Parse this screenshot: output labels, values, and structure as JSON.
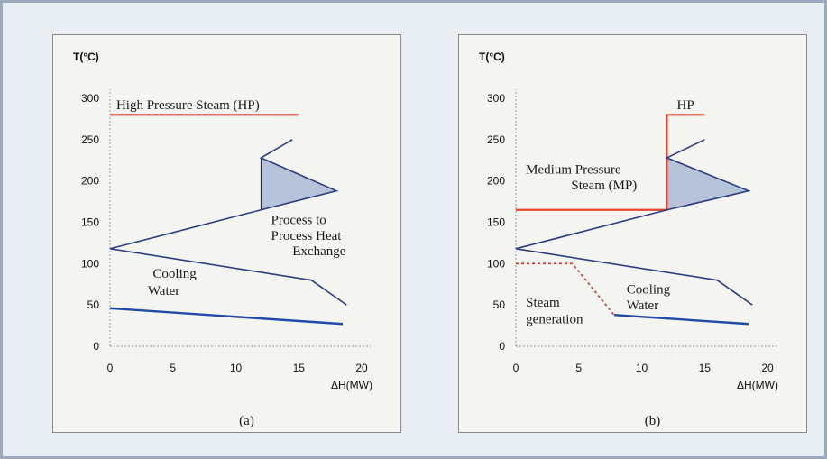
{
  "chart_data": [
    {
      "id": "a",
      "type": "line",
      "caption": "(a)",
      "ylabel": "T(°C)",
      "xlabel": "ΔH(MW)",
      "xlim": [
        0,
        20
      ],
      "ylim": [
        0,
        300
      ],
      "xticks": [
        "0",
        "5",
        "10",
        "15",
        "20"
      ],
      "yticks": [
        "0",
        "50",
        "100",
        "150",
        "200",
        "250",
        "300"
      ],
      "series": [
        {
          "kind": "hp",
          "color": "#e8452b",
          "width": 2.2,
          "points": [
            [
              0,
              280
            ],
            [
              15,
              280
            ]
          ]
        },
        {
          "kind": "gcc",
          "color": "#2c3f86",
          "width": 1.6,
          "points": [
            [
              14.5,
              250
            ],
            [
              12,
              228
            ],
            [
              18,
              188
            ],
            [
              12,
              165
            ],
            [
              0,
              118
            ],
            [
              16,
              80
            ],
            [
              18.8,
              50
            ]
          ]
        },
        {
          "kind": "cw",
          "color": "#1f4aa8",
          "width": 2.4,
          "points": [
            [
              0,
              46
            ],
            [
              18.5,
              27
            ]
          ]
        }
      ],
      "pockets": [
        {
          "color": "#b6c3d8",
          "points": [
            [
              12,
              228
            ],
            [
              18,
              188
            ],
            [
              12,
              165
            ]
          ]
        }
      ],
      "annotations": [
        {
          "text": "High Pressure  Steam (HP)",
          "x": 0.5,
          "y": 287,
          "anchor": "start"
        },
        {
          "text": "Process to",
          "x": 12.8,
          "y": 148,
          "anchor": "start"
        },
        {
          "text": "Process Heat",
          "x": 12.8,
          "y": 129,
          "anchor": "start"
        },
        {
          "text": "Exchange",
          "x": 14.5,
          "y": 110,
          "anchor": "start"
        },
        {
          "text": "Cooling",
          "x": 3.4,
          "y": 83,
          "anchor": "start"
        },
        {
          "text": "Water",
          "x": 3.0,
          "y": 62,
          "anchor": "start"
        }
      ]
    },
    {
      "id": "b",
      "type": "line",
      "caption": "(b)",
      "ylabel": "T(°C)",
      "xlabel": "ΔH(MW)",
      "xlim": [
        0,
        20
      ],
      "ylim": [
        0,
        300
      ],
      "xticks": [
        "0",
        "5",
        "10",
        "15",
        "20"
      ],
      "yticks": [
        "0",
        "50",
        "100",
        "150",
        "200",
        "250",
        "300"
      ],
      "series": [
        {
          "kind": "steam",
          "color": "#e8452b",
          "width": 2.2,
          "points": [
            [
              0,
              165
            ],
            [
              12,
              165
            ],
            [
              12,
              280
            ],
            [
              15,
              280
            ]
          ]
        },
        {
          "kind": "gcc",
          "color": "#2c3f86",
          "width": 1.6,
          "points": [
            [
              15,
              250
            ],
            [
              12,
              228
            ],
            [
              18.5,
              188
            ],
            [
              12,
              165
            ],
            [
              0,
              118
            ],
            [
              16,
              80
            ],
            [
              18.8,
              50
            ]
          ]
        },
        {
          "kind": "cw",
          "color": "#1f4aa8",
          "width": 2.4,
          "points": [
            [
              7.8,
              38
            ],
            [
              18.5,
              27
            ]
          ]
        },
        {
          "kind": "sg",
          "color": "#c23a2e",
          "width": 1.6,
          "dash": "3 3",
          "points": [
            [
              0,
              100
            ],
            [
              4.5,
              100
            ],
            [
              7.8,
              38
            ]
          ]
        }
      ],
      "pockets": [
        {
          "color": "#b6c3d8",
          "points": [
            [
              12,
              228
            ],
            [
              18.5,
              188
            ],
            [
              12,
              165
            ]
          ]
        }
      ],
      "annotations": [
        {
          "text": "HP",
          "x": 12.8,
          "y": 287,
          "anchor": "start"
        },
        {
          "text": "Medium Pressure",
          "x": 0.8,
          "y": 209,
          "anchor": "start"
        },
        {
          "text": "Steam (MP)",
          "x": 4.4,
          "y": 190,
          "anchor": "start"
        },
        {
          "text": "Cooling",
          "x": 8.8,
          "y": 64,
          "anchor": "start"
        },
        {
          "text": "Water",
          "x": 8.8,
          "y": 45,
          "anchor": "start"
        },
        {
          "text": "Steam",
          "x": 0.8,
          "y": 48,
          "anchor": "start"
        },
        {
          "text": "generation",
          "x": 0.8,
          "y": 28,
          "anchor": "start"
        }
      ]
    }
  ]
}
